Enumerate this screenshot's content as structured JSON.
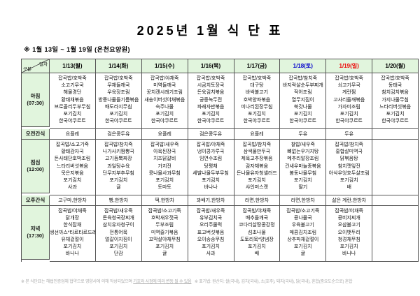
{
  "page": {
    "title": "2025년 1월 식 단 표",
    "subtitle": "※  1월 13일 ~ 1월 19일 (온천요양원)"
  },
  "colors": {
    "header_green": "#e1f5dd",
    "saturday_blue": "#0000cc",
    "sunday_red": "#ee0000",
    "border": "#555555",
    "text": "#111111"
  },
  "table": {
    "corner": {
      "top": "일자",
      "bottom": "구분"
    },
    "dates": [
      {
        "label": "1/13(월)",
        "color": "#000000"
      },
      {
        "label": "1/14(화)",
        "color": "#000000"
      },
      {
        "label": "1/15(수)",
        "color": "#000000"
      },
      {
        "label": "1/16(목)",
        "color": "#000000"
      },
      {
        "label": "1/17(금)",
        "color": "#000000"
      },
      {
        "label": "1/18(토)",
        "color": "#0000cc"
      },
      {
        "label": "1/19(일)",
        "color": "#ee0000"
      },
      {
        "label": "1/20(월)",
        "color": "#000000"
      }
    ],
    "sections": [
      {
        "id": "breakfast",
        "label": "아침",
        "time": "(07:30)",
        "type": "meal",
        "columns": [
          [
            "잡곡밥/호박죽",
            "소고기무국",
            "해물경단",
            "황태채볶음",
            "브로콜리두부무침",
            "포기김치",
            "한국야쿠르트"
          ],
          [
            "잡곡밥/호박죽",
            "무채들깨국",
            "우육장조림",
            "방풍나물들기름볶음",
            "배도라지무침",
            "포기김치",
            "한국야쿠르트"
          ],
          [
            "잡곡밥/야채죽",
            "미역들깨국",
            "꽁치캔시래기조림",
            "새송이버섯야채볶음",
            "숙주나물",
            "포기김치",
            "한국야쿠르트"
          ],
          [
            "잡곡밥/호박죽",
            "시금치토장국",
            "돈육김치볶음",
            "궁중녹두전",
            "파래자반볶음",
            "포기김치",
            "한국야쿠르트"
          ],
          [
            "잡곡밥/호박죽",
            "대구탕",
            "바싹불고기",
            "호박양파볶음",
            "미나리된장무침",
            "포기김치",
            "한국야쿠르트"
          ],
          [
            "잡곡밥/참치죽",
            "바지락살순두부찌개",
            "적어조림",
            "열무지짐이",
            "쑥갓나물",
            "포기김치",
            "한국야쿠르트"
          ],
          [
            "잡곡밥/호박죽",
            "쇠고기무국",
            "계란찜",
            "고사리들깨볶음",
            "가자미조림",
            "포기김치",
            "한국야쿠르트"
          ],
          [
            "잡곡밥/호박죽",
            "동태국",
            "참치김치볶음",
            "가지나물무침",
            "느타리버섯볶음",
            "포기김치",
            "한국야쿠르트"
          ]
        ]
      },
      {
        "id": "am-snack",
        "label": "오전간식",
        "time": "",
        "type": "snack",
        "columns": [
          "요플레",
          "검은콩두유",
          "요플레",
          "검은콩두유",
          "요플레",
          "두유",
          "두유",
          ""
        ]
      },
      {
        "id": "lunch",
        "label": "점심",
        "time": "(12:00)",
        "type": "meal",
        "columns": [
          [
            "잡곡밥/소고기죽",
            "황태감자국",
            "돈사태단호박조림",
            "느타리버섯볶음",
            "묵은지볶음",
            "포기김치",
            "사과"
          ],
          [
            "잡곡밥/참치죽",
            "나가사키짬뽕국",
            "고기듬뿍짜장",
            "과일탕수육",
            "단무지부추무침",
            "포기김치",
            "귤"
          ],
          [
            "잡곡밥/새우죽",
            "아욱된장국",
            "치즈닭갈비",
            "가지전",
            "콩나물사과무침",
            "포기김치",
            "토마토"
          ],
          [
            "잡곡밥/야채죽",
            "냉이콩가루국",
            "임연수조림",
            "탕평채",
            "세발나물두부무침",
            "포기김치",
            "바나나"
          ],
          [
            "잡곡밥/참치죽",
            "삼색물만두국",
            "제육고추장볶음",
            "감자채볶음",
            "돈나물유자청샐러드",
            "포기김치",
            "샤인머스켓"
          ],
          [
            "찰밥/새우죽",
            "뼈없는우거지탕",
            "메추리알장조림",
            "건새우마늘종볶음",
            "봄동나물무침",
            "포기김치",
            "딸기"
          ],
          [
            "잡곡밥/참치죽",
            "홍합살미역국",
            "닭볶음탕",
            "참치깻잎전",
            "아삭우엉호두살조림",
            "포기김치",
            "배"
          ],
          []
        ]
      },
      {
        "id": "pm-snack",
        "label": "오후간식",
        "time": "",
        "type": "snack",
        "columns": [
          "고구마,한방차",
          "빵,한방차",
          "떡,한방차",
          "꽈배기,한방차",
          "라면,한방차",
          "라면,한방차",
          "삶은 계란,한방차",
          ""
        ]
      },
      {
        "id": "dinner",
        "label": "저녁",
        "time": "(17:30)",
        "type": "meal",
        "columns": [
          [
            "잡곡밥/야채죽",
            "닭개장",
            "한식잡채",
            "생선까스*타르타르드레싱",
            "유채겉절이",
            "포기김치",
            "바나나"
          ],
          [
            "잡곡밥/새우죽",
            "돈육청국장찌개",
            "삼치유자청구이",
            "전통어묵",
            "얼갈이지짐이",
            "포기김치",
            "단감"
          ],
          [
            "잡곡밥/소고기죽",
            "호박새우젓국",
            "두부조림",
            "미역줄기볶음",
            "꼬막살야채무침",
            "포기김치",
            "귤"
          ],
          [
            "잡곡밥/새우죽",
            "유부김치국",
            "오리주물럭",
            "표고버섯볶음",
            "오이송송무침",
            "포기김치",
            "사과"
          ],
          [
            "잡곡밥/야채죽",
            "배추들깨국",
            "코다리살땅콩강정",
            "섬초나물",
            "도토리묵*양념장",
            "포기김치",
            "배"
          ],
          [
            "잡곡밥/소고기죽",
            "콩나물국",
            "우육불고기",
            "매콤김치조림",
            "상추파채겉절이",
            "포기김치",
            "귤"
          ],
          [
            "잡곡밥/야채죽",
            "콩비지찌개",
            "오삼불고기",
            "오이뱃두리",
            "청경채무침",
            "포기김치",
            "바나나"
          ],
          []
        ]
      }
    ]
  },
  "footnote": {
    "left": "※ 본 식단표는 해썹인증업체 협약으로 영양사에 의해 작성되었으며",
    "underlined": "기호와 사정에 따라 변동 될 수 있음",
    "right": "※ 표기법: 원산지: 쌀(국내), 김치(국내), 소(호주), 돼지(국내), 닭(국내), 혼합(중요도순으로) 혼합"
  }
}
